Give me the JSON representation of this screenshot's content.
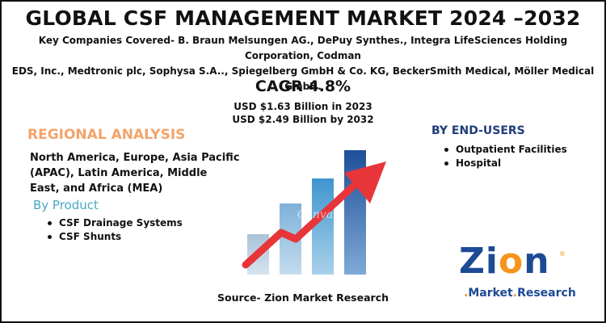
{
  "infographic": {
    "title": "GLOBAL CSF MANAGEMENT MARKET 2024 –2032",
    "companies_line1": "Key Companies Covered- B. Braun Melsungen AG., DePuy Synthes., Integra LifeSciences Holding Corporation, Codman",
    "companies_line2": "EDS, Inc., Medtronic plc, Sophysa S.A.., Spiegelberg GmbH & Co. KG, BeckerSmith Medical, Möller Medical GmbH.",
    "cagr": "CAGR 4.8%",
    "usd_2023": "USD $1.63 Billion in 2023",
    "usd_2032": "USD $2.49  Billion by 2032",
    "regional": {
      "title": "REGIONAL ANALYSIS",
      "text": "North America, Europe, Asia Pacific (APAC), Latin America, Middle East, and Africa (MEA)"
    },
    "by_product": {
      "title": "By Product",
      "items": [
        "CSF Drainage Systems",
        "CSF Shunts"
      ]
    },
    "by_end_users": {
      "title": "BY END-USERS",
      "items": [
        "Outpatient Facilities",
        "Hospital"
      ]
    },
    "source": "Source- Zion Market Research",
    "logo": {
      "word_z": "Z",
      "word_i": "i",
      "word_o": "o",
      "word_n": "n",
      "reg": "®",
      "mr_market": "Market",
      "mr_dot": ".",
      "mr_research": "Research",
      "mr_dot2": "."
    },
    "watermark": "Canva",
    "colors": {
      "regional_title": "#f2a46a",
      "by_product_title": "#49a8c4",
      "end_user_title": "#1f3d7a",
      "arrow": "#e8353a",
      "logo_blue": "#1d4a95",
      "logo_orange": "#f7941d"
    },
    "icons": [
      "growth-bar-chart-icon",
      "trend-up-arrow-icon"
    ]
  }
}
